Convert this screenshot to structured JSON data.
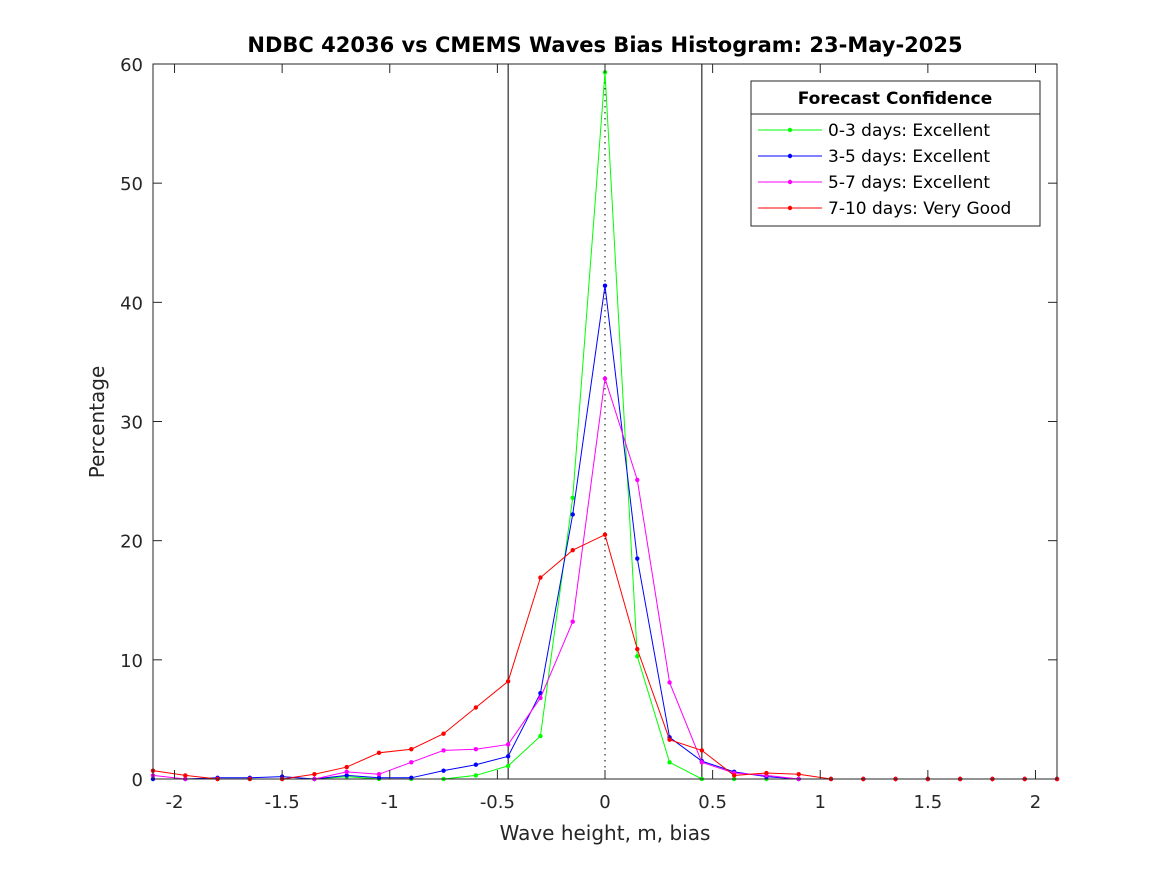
{
  "chart_data": {
    "type": "line",
    "title": "NDBC 42036 vs CMEMS Waves Bias Histogram: 23-May-2025",
    "xlabel": "Wave height, m, bias",
    "ylabel": "Percentage",
    "xlim": [
      -2.1,
      2.1
    ],
    "ylim": [
      0,
      60
    ],
    "xticks": [
      -2,
      -1.5,
      -1,
      -0.5,
      0,
      0.5,
      1,
      1.5,
      2
    ],
    "xtick_labels": [
      "-2",
      "-1.5",
      "-1",
      "-0.5",
      "0",
      "0.5",
      "1",
      "1.5",
      "2"
    ],
    "yticks": [
      0,
      10,
      20,
      30,
      40,
      50,
      60
    ],
    "ytick_labels": [
      "0",
      "10",
      "20",
      "30",
      "40",
      "50",
      "60"
    ],
    "grid": false,
    "vertical_lines": [
      -0.45,
      0.45
    ],
    "dotted_line": 0,
    "legend": {
      "title": "Forecast Confidence",
      "placement": "top-right"
    },
    "x": [
      -2.1,
      -1.95,
      -1.8,
      -1.65,
      -1.5,
      -1.35,
      -1.2,
      -1.05,
      -0.9,
      -0.75,
      -0.6,
      -0.45,
      -0.3,
      -0.15,
      0,
      0.15,
      0.3,
      0.45,
      0.6,
      0.75,
      0.9,
      1.05,
      1.2,
      1.35,
      1.5,
      1.65,
      1.8,
      1.95,
      2.1
    ],
    "series": [
      {
        "name": "0-3 days: Excellent",
        "color": "#00ff00",
        "values": [
          0,
          0,
          0,
          0,
          0,
          0,
          0.2,
          0,
          0,
          0,
          0.3,
          1.1,
          3.6,
          23.6,
          59.3,
          10.3,
          1.4,
          0,
          0,
          0,
          0,
          0,
          0,
          0,
          0,
          0,
          0,
          0,
          0
        ]
      },
      {
        "name": "3-5 days: Excellent",
        "color": "#0000ff",
        "values": [
          0,
          0,
          0.1,
          0.1,
          0.2,
          0,
          0.3,
          0.1,
          0.1,
          0.7,
          1.2,
          1.9,
          7.2,
          22.2,
          41.4,
          18.5,
          3.5,
          1.5,
          0.6,
          0.2,
          0,
          0,
          0,
          0,
          0,
          0,
          0,
          0,
          0
        ]
      },
      {
        "name": "5-7 days: Excellent",
        "color": "#ff00ff",
        "values": [
          0.3,
          0,
          0,
          0,
          0,
          0,
          0.6,
          0.4,
          1.4,
          2.4,
          2.5,
          2.9,
          6.8,
          13.2,
          33.6,
          25.1,
          8.1,
          1.4,
          0.5,
          0.3,
          0,
          0,
          0,
          0,
          0,
          0,
          0,
          0,
          0
        ]
      },
      {
        "name": "7-10 days: Very Good",
        "color": "#ff0000",
        "values": [
          0.7,
          0.3,
          0,
          0,
          0,
          0.4,
          1.0,
          2.2,
          2.5,
          3.8,
          6.0,
          8.2,
          16.9,
          19.2,
          20.5,
          10.9,
          3.3,
          2.4,
          0.3,
          0.5,
          0.4,
          0,
          0,
          0,
          0,
          0,
          0,
          0,
          0
        ]
      }
    ]
  }
}
